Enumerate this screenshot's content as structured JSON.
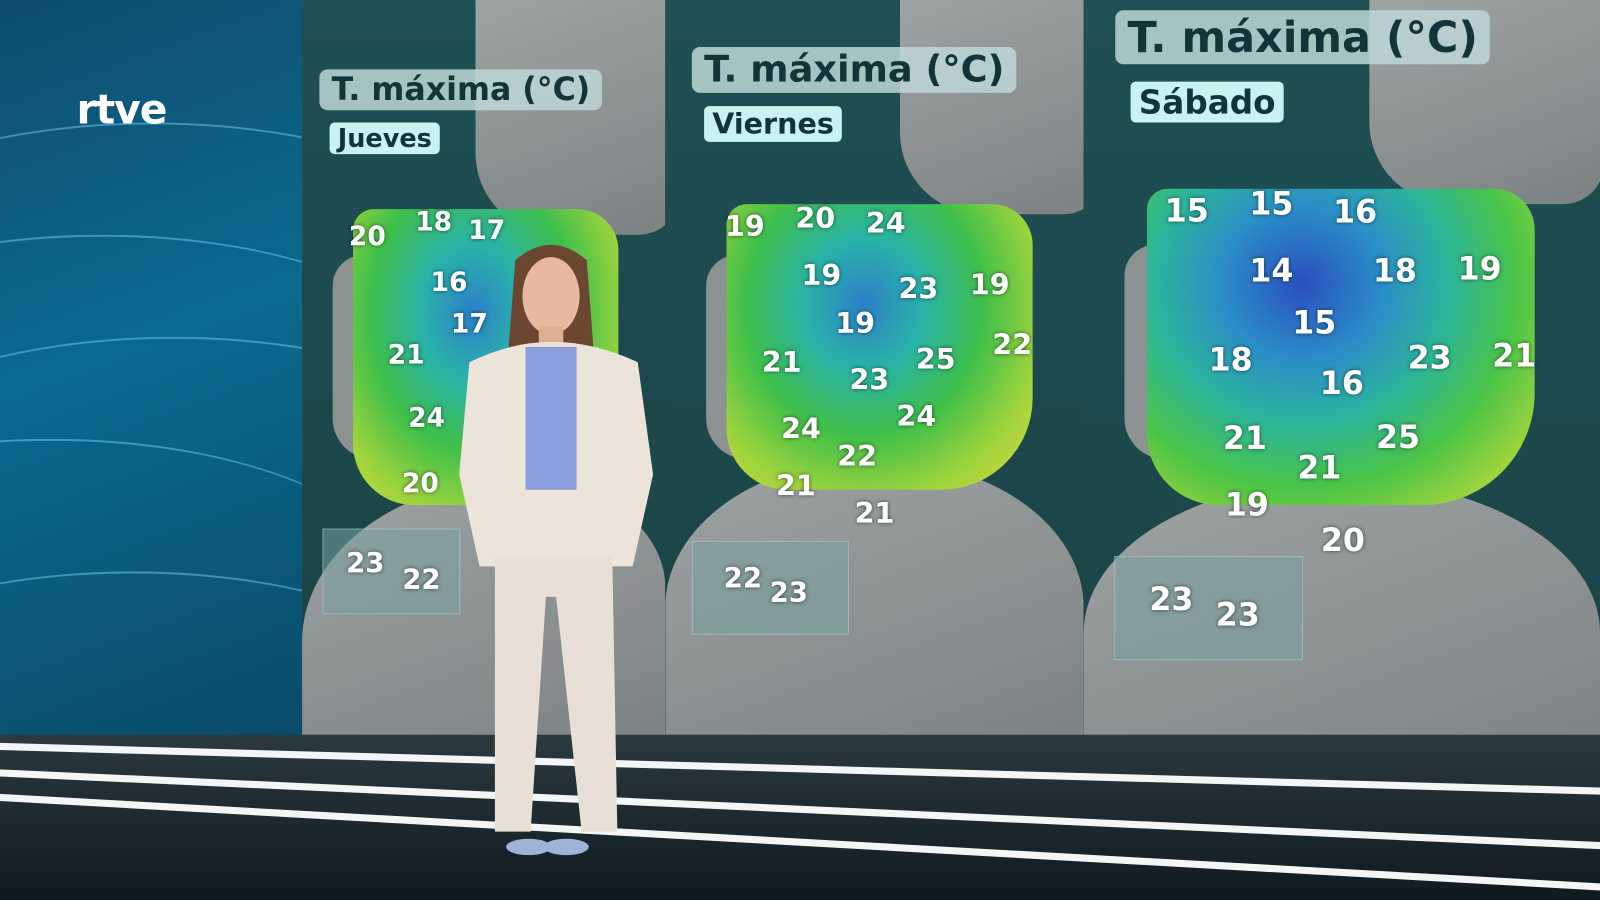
{
  "channel": {
    "logo": "rtve"
  },
  "maps": [
    {
      "title": "T. máxima (°C)",
      "day": "Jueves",
      "temps": [
        "20",
        "18",
        "17",
        "16",
        "17",
        "21",
        "24",
        "20"
      ],
      "canarias": [
        "23",
        "22"
      ]
    },
    {
      "title": "T. máxima (°C)",
      "day": "Viernes",
      "temps": [
        "19",
        "20",
        "24",
        "19",
        "23",
        "19",
        "19",
        "21",
        "23",
        "25",
        "22",
        "24",
        "24",
        "22",
        "21",
        "21"
      ],
      "canarias": [
        "22",
        "23"
      ]
    },
    {
      "title": "T. máxima (°C)",
      "day": "Sábado",
      "temps": [
        "15",
        "15",
        "16",
        "14",
        "18",
        "19",
        "15",
        "18",
        "16",
        "23",
        "21",
        "21",
        "25",
        "21",
        "19",
        "20"
      ],
      "canarias": [
        "23",
        "23"
      ]
    }
  ],
  "colors": {
    "cold": "#2d5fc9",
    "mild": "#3fbf4a",
    "warm": "#d9dd3a",
    "sea": "#1f5054",
    "panel_title_bg": "#bed7d7",
    "day_bg": "#c9f3f3"
  }
}
